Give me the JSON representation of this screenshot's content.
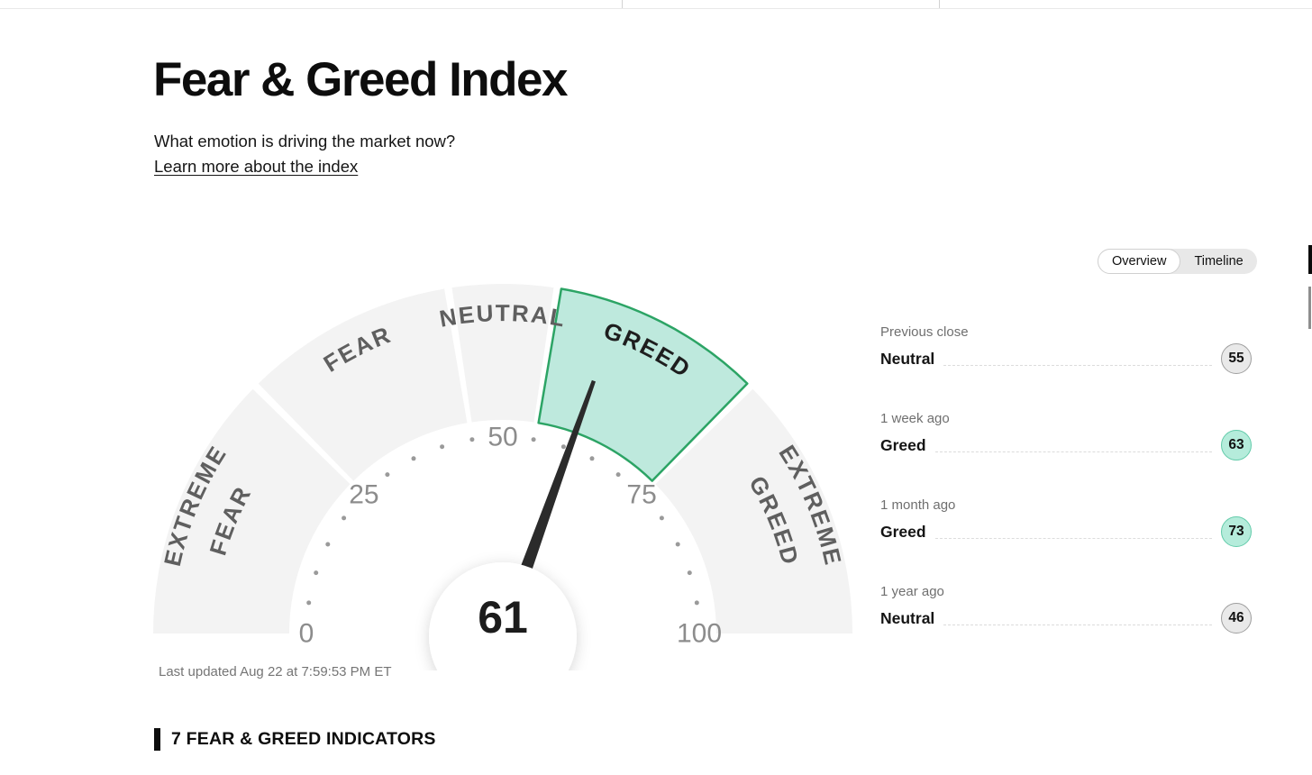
{
  "page": {
    "title": "Fear & Greed Index",
    "subtitle": "What emotion is driving the market now?",
    "learn_more": "Learn more about the index",
    "last_updated": "Last updated Aug 22 at 7:59:53 PM ET",
    "indicators_heading": "7 FEAR & GREED INDICATORS"
  },
  "tabs": [
    {
      "label": "Overview",
      "active": true
    },
    {
      "label": "Timeline",
      "active": false
    }
  ],
  "history": [
    {
      "label": "Previous close",
      "value_label": "Neutral",
      "value": "55",
      "tone": "neutral"
    },
    {
      "label": "1 week ago",
      "value_label": "Greed",
      "value": "63",
      "tone": "greed"
    },
    {
      "label": "1 month ago",
      "value_label": "Greed",
      "value": "73",
      "tone": "greed"
    },
    {
      "label": "1 year ago",
      "value_label": "Neutral",
      "value": "46",
      "tone": "neutral"
    }
  ],
  "chart_data": {
    "type": "gauge",
    "title": "Fear & Greed Index gauge",
    "value": 61,
    "value_label": "Greed",
    "min": 0,
    "max": 100,
    "tick_numbers": [
      0,
      25,
      50,
      75,
      100
    ],
    "dot_step": 5,
    "segments": [
      {
        "label": "EXTREME FEAR",
        "from": 0,
        "to": 25,
        "highlight": false
      },
      {
        "label": "FEAR",
        "from": 25,
        "to": 45,
        "highlight": false
      },
      {
        "label": "NEUTRAL",
        "from": 45,
        "to": 55,
        "highlight": false
      },
      {
        "label": "GREED",
        "from": 55,
        "to": 75,
        "highlight": true
      },
      {
        "label": "EXTREME GREED",
        "from": 75,
        "to": 100,
        "highlight": false
      }
    ]
  },
  "colors": {
    "segment_gray": "#f3f3f3",
    "segment_highlight_fill": "#bee9dd",
    "segment_highlight_stroke": "#2ca465",
    "segment_label_gray": "#5f5f5f",
    "segment_label_dark": "#1e1e1e",
    "number_gray": "#8c8c8c",
    "dot_gray": "#9a9a9a",
    "needle": "#2b2b2b",
    "center_value": "#1c1c1c",
    "badge_neutral_fill": "#e9e9e9",
    "badge_neutral_stroke": "#9e9e9e",
    "badge_greed_fill": "#b5ecdb",
    "badge_greed_stroke": "#63cbaa"
  }
}
